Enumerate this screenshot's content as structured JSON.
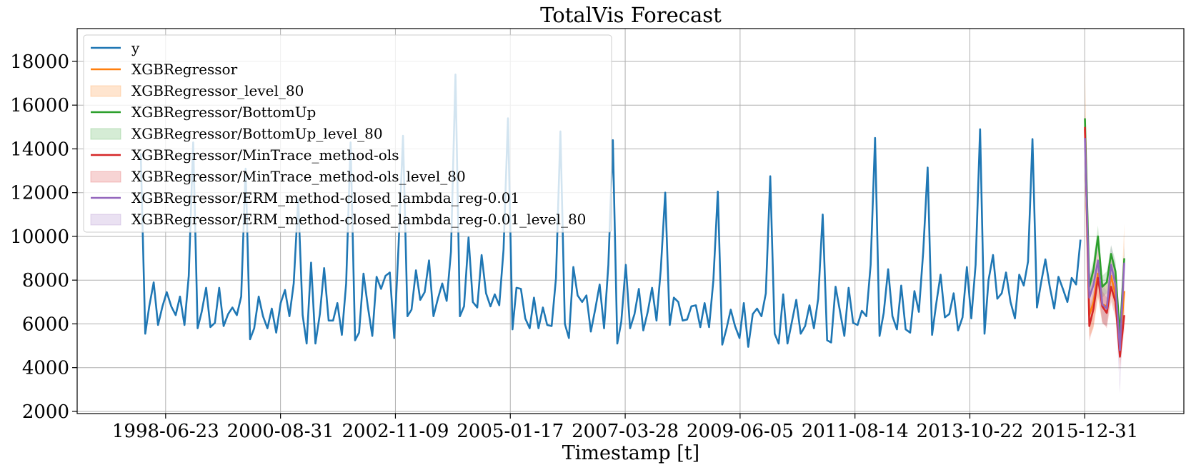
{
  "chart_data": {
    "type": "line",
    "title": "TotalVis Forecast",
    "xlabel": "Timestamp [t]",
    "ylabel": "",
    "x_tick_labels": [
      "1998-06-23",
      "2000-08-31",
      "2002-11-09",
      "2005-01-17",
      "2007-03-28",
      "2009-06-05",
      "2011-08-14",
      "2013-10-22",
      "2015-12-31"
    ],
    "y_ticks": [
      2000,
      4000,
      6000,
      8000,
      10000,
      12000,
      14000,
      16000,
      18000
    ],
    "ylim": [
      1900,
      19500
    ],
    "xlim": [
      "1996-10-15",
      "2017-11-20"
    ],
    "grid": true,
    "legend_position": "upper-left",
    "colors": {
      "y": "#1f77b4",
      "XGBRegressor": "#ff7f0e",
      "XGBRegressor/BottomUp": "#2ca02c",
      "XGBRegressor/MinTrace_method-ols": "#d62728",
      "XGBRegressor/ERM_method-closed_lambda_reg-0.01": "#9467bd"
    },
    "legend": [
      {
        "label": "y",
        "kind": "line",
        "color": "#1f77b4"
      },
      {
        "label": "XGBRegressor",
        "kind": "line",
        "color": "#ff7f0e"
      },
      {
        "label": "XGBRegressor_level_80",
        "kind": "band",
        "color": "#ff7f0e"
      },
      {
        "label": "XGBRegressor/BottomUp",
        "kind": "line",
        "color": "#2ca02c"
      },
      {
        "label": "XGBRegressor/BottomUp_level_80",
        "kind": "band",
        "color": "#2ca02c"
      },
      {
        "label": "XGBRegressor/MinTrace_method-ols",
        "kind": "line",
        "color": "#d62728"
      },
      {
        "label": "XGBRegressor/MinTrace_method-ols_level_80",
        "kind": "band",
        "color": "#d62728"
      },
      {
        "label": "XGBRegressor/ERM_method-closed_lambda_reg-0.01",
        "kind": "line",
        "color": "#9467bd"
      },
      {
        "label": "XGBRegressor/ERM_method-closed_lambda_reg-0.01_level_80",
        "kind": "band",
        "color": "#9467bd"
      }
    ],
    "history": {
      "name": "y",
      "start": "1998-01-01",
      "frequency": "monthly",
      "values": [
        13800,
        5550,
        6800,
        7900,
        5950,
        6800,
        7450,
        6800,
        6400,
        7250,
        5950,
        8200,
        14300,
        5800,
        6550,
        7650,
        5850,
        6050,
        7650,
        5900,
        6450,
        6750,
        6400,
        7250,
        13100,
        5300,
        5800,
        7250,
        6350,
        5800,
        6700,
        5600,
        6950,
        7550,
        6350,
        7850,
        11700,
        6400,
        5100,
        8800,
        5100,
        6450,
        8550,
        6150,
        6150,
        6950,
        5500,
        7850,
        14300,
        5250,
        5600,
        8300,
        6800,
        5450,
        8150,
        7600,
        8200,
        8350,
        5350,
        9600,
        14600,
        6350,
        6650,
        8450,
        7100,
        7450,
        8900,
        6350,
        7150,
        7850,
        7050,
        9300,
        17400,
        6350,
        6800,
        9950,
        7000,
        6750,
        9150,
        7400,
        6800,
        7350,
        6850,
        9400,
        15400,
        5750,
        7650,
        7600,
        6250,
        5800,
        7200,
        5800,
        6750,
        5950,
        5900,
        8100,
        14800,
        6000,
        5350,
        8600,
        7300,
        7000,
        7300,
        5650,
        6700,
        7800,
        5800,
        8700,
        14400,
        5100,
        6100,
        8700,
        5800,
        6450,
        7600,
        5700,
        6550,
        7650,
        6150,
        8500,
        12000,
        5950,
        7200,
        7000,
        6150,
        6200,
        6800,
        6850,
        5850,
        6950,
        5850,
        8000,
        12050,
        5050,
        5750,
        6650,
        5900,
        5350,
        6950,
        4950,
        6450,
        6700,
        6350,
        7400,
        12750,
        5550,
        5100,
        7350,
        5100,
        6100,
        7100,
        5550,
        5900,
        6850,
        5800,
        7150,
        11000,
        5250,
        5150,
        7700,
        6600,
        5450,
        7650,
        6050,
        5950,
        6600,
        6350,
        8700,
        14500,
        5450,
        6500,
        8500,
        6350,
        5750,
        7750,
        5750,
        5600,
        7500,
        6550,
        9300,
        13150,
        5500,
        6900,
        8250,
        6300,
        6450,
        7400,
        5700,
        6300,
        8600,
        6250,
        8700,
        14900,
        5550,
        8000,
        9150,
        7150,
        7400,
        8350,
        7000,
        6250,
        8250,
        7750,
        8850,
        14450,
        6750,
        7850,
        8950,
        7700,
        6700,
        8150,
        7600,
        7000,
        8100,
        7800,
        9850
      ]
    },
    "forecast": {
      "x": [
        "2016-01-01",
        "2016-02-01",
        "2016-03-01",
        "2016-04-01",
        "2016-05-01",
        "2016-06-01",
        "2016-07-01",
        "2016-08-01",
        "2016-09-01",
        "2016-10-01"
      ],
      "series": [
        {
          "name": "XGBRegressor",
          "color": "#ff7f0e",
          "values": [
            14900,
            6400,
            7000,
            8300,
            6900,
            6800,
            8200,
            7300,
            5000,
            7500
          ],
          "lo": [
            11500,
            5400,
            5800,
            7200,
            6000,
            5900,
            7300,
            6500,
            4400,
            6400
          ],
          "hi": [
            17900,
            7600,
            8400,
            9400,
            7900,
            7800,
            9200,
            8200,
            5900,
            10600
          ]
        },
        {
          "name": "XGBRegressor/BottomUp",
          "color": "#2ca02c",
          "values": [
            15400,
            7700,
            8500,
            10000,
            7700,
            7900,
            9200,
            8400,
            5500,
            9000
          ],
          "lo": [
            15000,
            7300,
            8000,
            9500,
            7200,
            7400,
            8700,
            7900,
            5100,
            8500
          ],
          "hi": [
            15600,
            8100,
            9000,
            10500,
            8200,
            8400,
            9600,
            8900,
            6000,
            9500
          ]
        },
        {
          "name": "XGBRegressor/MinTrace_method-ols",
          "color": "#d62728",
          "values": [
            15000,
            5900,
            6700,
            8100,
            6800,
            6500,
            7700,
            7000,
            4500,
            6400
          ],
          "lo": [
            14000,
            5200,
            5900,
            7300,
            6100,
            5800,
            7000,
            6300,
            3900,
            5700
          ],
          "hi": [
            15800,
            6700,
            7500,
            8900,
            7500,
            7200,
            8400,
            7700,
            5100,
            7100
          ]
        },
        {
          "name": "XGBRegressor/ERM_method-closed_lambda_reg-0.01",
          "color": "#9467bd",
          "values": [
            14500,
            7200,
            7800,
            8900,
            6900,
            6700,
            8700,
            7800,
            4800,
            8800
          ],
          "lo": [
            13600,
            6200,
            6900,
            7900,
            6000,
            5900,
            7700,
            6800,
            2800,
            7600
          ],
          "hi": [
            15300,
            8200,
            8700,
            9800,
            7800,
            7500,
            9600,
            8700,
            3300,
            9800
          ]
        }
      ]
    }
  }
}
